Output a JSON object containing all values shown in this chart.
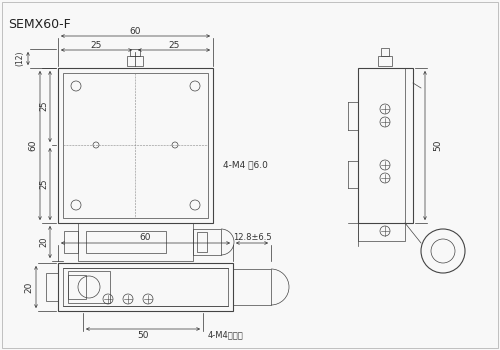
{
  "title": "SEMX60-F",
  "bg_color": "#f8f8f8",
  "line_color": "#444444",
  "dim_color": "#333333",
  "annotations": {
    "top_width": "60",
    "top_left_half": "25",
    "top_right_half": "25",
    "left_height_top": "(12)",
    "left_height_mid": "60",
    "left_dim_25a": "25",
    "left_dim_25b": "25",
    "left_dim_20": "20",
    "holes_label": "4-M4 深6.0",
    "right_height": "50",
    "bottom_width_60": "60",
    "bottom_right_dim": "12.8±6.5",
    "bottom_height": "20",
    "bottom_inner_width": "50",
    "bottom_holes": "4-M4沉头孔"
  }
}
